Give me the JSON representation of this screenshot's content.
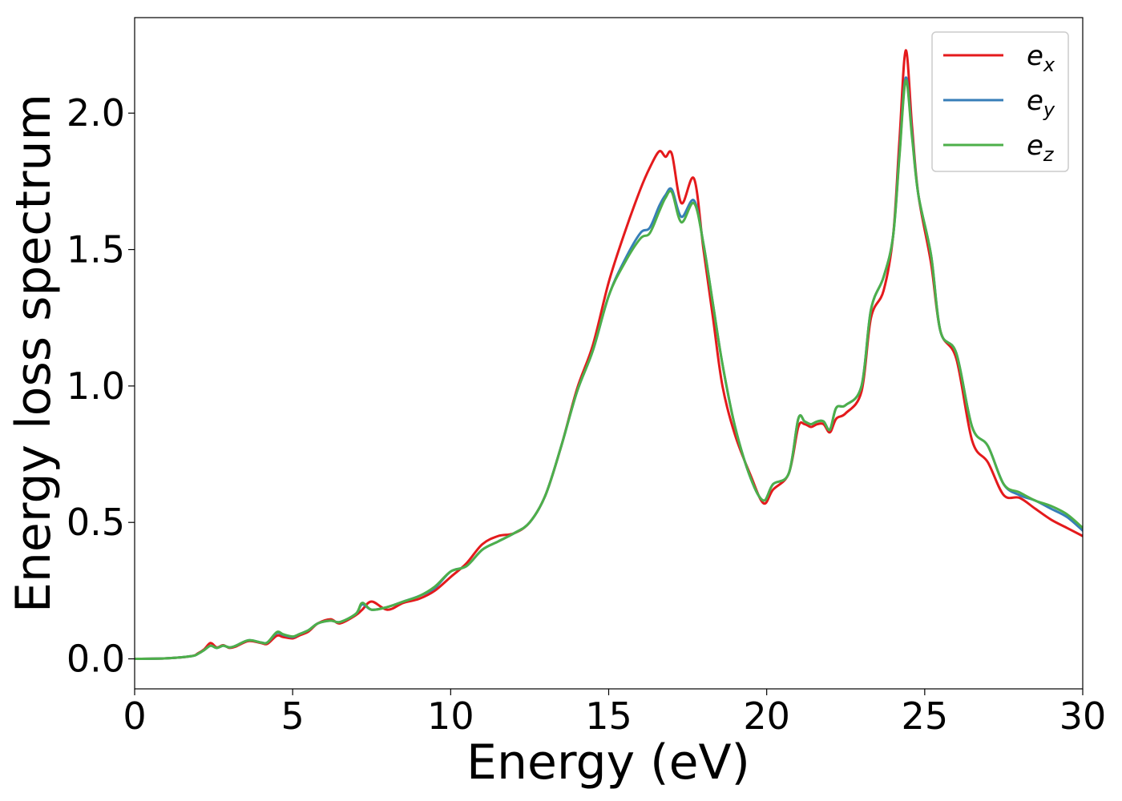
{
  "chart_data": {
    "type": "line",
    "xlabel": "Energy (eV)",
    "ylabel": "Energy loss spectrum",
    "xlim": [
      0,
      30
    ],
    "ylim": [
      -0.11,
      2.35
    ],
    "xticks": [
      0,
      5,
      10,
      15,
      20,
      25,
      30
    ],
    "xtick_labels": [
      "0",
      "5",
      "10",
      "15",
      "20",
      "25",
      "30"
    ],
    "yticks": [
      0.0,
      0.5,
      1.0,
      1.5,
      2.0
    ],
    "ytick_labels": [
      "0.0",
      "0.5",
      "1.0",
      "1.5",
      "2.0"
    ],
    "grid": false,
    "legend_position": "top-right",
    "series": [
      {
        "name": "e",
        "subscript": "x",
        "color": "#e41a1c",
        "x": [
          0,
          1,
          1.8,
          2,
          2.2,
          2.4,
          2.6,
          2.8,
          3,
          3.2,
          3.6,
          4,
          4.2,
          4.5,
          4.7,
          5,
          5.2,
          5.5,
          5.8,
          6.2,
          6.5,
          7,
          7.2,
          7.5,
          8,
          8.5,
          9,
          9.5,
          10,
          10.5,
          11,
          11.5,
          12,
          12.5,
          13,
          13.5,
          14,
          14.5,
          15,
          15.5,
          16,
          16.3,
          16.6,
          16.8,
          17,
          17.3,
          17.7,
          18,
          18.3,
          18.6,
          19,
          19.5,
          19.9,
          20.2,
          20.7,
          21,
          21.2,
          21.4,
          21.6,
          21.8,
          22,
          22.2,
          22.5,
          23,
          23.3,
          23.7,
          24,
          24.2,
          24.4,
          24.6,
          24.8,
          25.2,
          25.5,
          26,
          26.5,
          27,
          27.5,
          28,
          28.5,
          29,
          29.5,
          30
        ],
        "y": [
          0,
          0.002,
          0.01,
          0.02,
          0.035,
          0.058,
          0.042,
          0.05,
          0.04,
          0.045,
          0.065,
          0.058,
          0.055,
          0.085,
          0.08,
          0.075,
          0.085,
          0.1,
          0.13,
          0.145,
          0.13,
          0.16,
          0.18,
          0.21,
          0.18,
          0.205,
          0.22,
          0.25,
          0.3,
          0.35,
          0.42,
          0.45,
          0.46,
          0.5,
          0.6,
          0.78,
          0.99,
          1.15,
          1.38,
          1.56,
          1.72,
          1.8,
          1.86,
          1.84,
          1.85,
          1.67,
          1.76,
          1.5,
          1.25,
          1.0,
          0.82,
          0.67,
          0.57,
          0.62,
          0.68,
          0.85,
          0.86,
          0.85,
          0.86,
          0.86,
          0.83,
          0.88,
          0.9,
          0.98,
          1.25,
          1.35,
          1.55,
          1.9,
          2.23,
          1.95,
          1.7,
          1.45,
          1.2,
          1.1,
          0.8,
          0.72,
          0.6,
          0.59,
          0.55,
          0.51,
          0.48,
          0.45
        ]
      },
      {
        "name": "e",
        "subscript": "y",
        "color": "#377eb8",
        "x": [
          0,
          1,
          1.8,
          2,
          2.2,
          2.4,
          2.6,
          2.8,
          3,
          3.2,
          3.6,
          4,
          4.2,
          4.5,
          4.7,
          5,
          5.2,
          5.5,
          5.8,
          6.2,
          6.5,
          7,
          7.2,
          7.5,
          8,
          8.5,
          9,
          9.5,
          10,
          10.5,
          11,
          11.5,
          12,
          12.5,
          13,
          13.5,
          14,
          14.5,
          15,
          15.5,
          16,
          16.3,
          16.6,
          16.8,
          17,
          17.3,
          17.7,
          18,
          18.3,
          18.6,
          19,
          19.5,
          19.9,
          20.2,
          20.7,
          21,
          21.2,
          21.4,
          21.6,
          21.8,
          22,
          22.2,
          22.5,
          23,
          23.3,
          23.7,
          24,
          24.2,
          24.4,
          24.6,
          24.8,
          25.2,
          25.5,
          26,
          26.5,
          27,
          27.5,
          28,
          28.5,
          29,
          29.5,
          30
        ],
        "y": [
          0,
          0.002,
          0.01,
          0.018,
          0.032,
          0.048,
          0.04,
          0.048,
          0.042,
          0.048,
          0.068,
          0.06,
          0.06,
          0.095,
          0.088,
          0.08,
          0.09,
          0.105,
          0.13,
          0.14,
          0.135,
          0.165,
          0.2,
          0.18,
          0.19,
          0.21,
          0.23,
          0.26,
          0.32,
          0.34,
          0.4,
          0.43,
          0.46,
          0.5,
          0.6,
          0.78,
          0.98,
          1.13,
          1.33,
          1.46,
          1.56,
          1.58,
          1.66,
          1.7,
          1.72,
          1.62,
          1.68,
          1.52,
          1.3,
          1.08,
          0.85,
          0.66,
          0.58,
          0.64,
          0.68,
          0.88,
          0.87,
          0.86,
          0.87,
          0.87,
          0.84,
          0.92,
          0.93,
          1.0,
          1.28,
          1.4,
          1.55,
          1.85,
          2.13,
          1.92,
          1.7,
          1.48,
          1.2,
          1.12,
          0.85,
          0.78,
          0.64,
          0.6,
          0.58,
          0.55,
          0.52,
          0.47
        ]
      },
      {
        "name": "e",
        "subscript": "z",
        "color": "#4daf4a",
        "x": [
          0,
          1,
          1.8,
          2,
          2.2,
          2.4,
          2.6,
          2.8,
          3,
          3.2,
          3.6,
          4,
          4.2,
          4.5,
          4.7,
          5,
          5.2,
          5.5,
          5.8,
          6.2,
          6.5,
          7,
          7.2,
          7.5,
          8,
          8.5,
          9,
          9.5,
          10,
          10.5,
          11,
          11.5,
          12,
          12.5,
          13,
          13.5,
          14,
          14.5,
          15,
          15.5,
          16,
          16.3,
          16.6,
          16.8,
          17,
          17.3,
          17.7,
          18,
          18.3,
          18.6,
          19,
          19.5,
          19.9,
          20.2,
          20.7,
          21,
          21.2,
          21.4,
          21.6,
          21.8,
          22,
          22.2,
          22.5,
          23,
          23.3,
          23.7,
          24,
          24.2,
          24.4,
          24.6,
          24.8,
          25.2,
          25.5,
          26,
          26.5,
          27,
          27.5,
          28,
          28.5,
          29,
          29.5,
          30
        ],
        "y": [
          0,
          0.002,
          0.01,
          0.018,
          0.032,
          0.048,
          0.04,
          0.048,
          0.042,
          0.048,
          0.068,
          0.06,
          0.06,
          0.098,
          0.09,
          0.082,
          0.09,
          0.105,
          0.13,
          0.14,
          0.135,
          0.165,
          0.205,
          0.18,
          0.19,
          0.21,
          0.23,
          0.265,
          0.32,
          0.34,
          0.4,
          0.43,
          0.46,
          0.5,
          0.6,
          0.78,
          0.98,
          1.13,
          1.33,
          1.45,
          1.54,
          1.56,
          1.64,
          1.69,
          1.71,
          1.6,
          1.67,
          1.52,
          1.3,
          1.08,
          0.85,
          0.66,
          0.58,
          0.64,
          0.68,
          0.88,
          0.87,
          0.86,
          0.87,
          0.87,
          0.84,
          0.92,
          0.93,
          1.0,
          1.28,
          1.4,
          1.55,
          1.84,
          2.12,
          1.91,
          1.7,
          1.48,
          1.2,
          1.12,
          0.85,
          0.78,
          0.64,
          0.61,
          0.58,
          0.56,
          0.53,
          0.48
        ]
      }
    ]
  }
}
